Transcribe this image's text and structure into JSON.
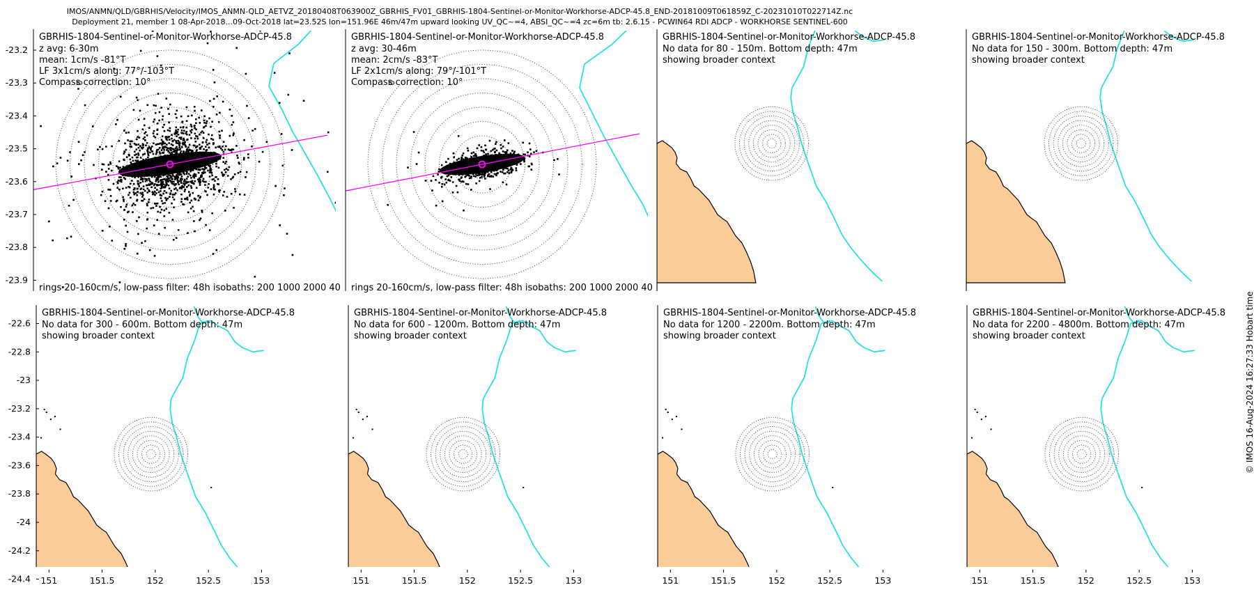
{
  "header": {
    "line1": "IMOS/ANMN/QLD/GBRHIS/Velocity/IMOS_ANMN-QLD_AETVZ_20180408T063900Z_GBRHIS_FV01_GBRHIS-1804-Sentinel-or-Monitor-Workhorse-ADCP-45.8_END-20181009T061859Z_C-20231010T022714Z.nc",
    "line2": "Deployment 21, member 1 08-Apr-2018...09-Oct-2018 lat=23.52S lon=151.96E 46m/47m upward looking UV_QC~=4, ABSI_QC~=4 zc=6m tb: 2.6.15 - PCWIN64 RDI ADCP - WORKHORSE SENTINEL-600"
  },
  "credit": "© IMOS 16-Aug-2024 16:27:33 Hobart time",
  "colors": {
    "land": "#fbcb98",
    "isobath": "#2adfe0",
    "lowpass": "#ff00ff",
    "dots": "#000000"
  },
  "chart_data": [
    {
      "type": "scatter",
      "panel": 1,
      "title": "GBRHIS-1804-Sentinel-or-Monitor-Workhorse-ADCP-45.8",
      "info": [
        "z avg: 6-30m",
        "mean: 1cm/s -81°T",
        "LF 3x1cm/s along: 77°/-103°T",
        "Compass correction: 10°"
      ],
      "footer": "rings 20-160cm/s, low-pass filter: 48h isobaths: 200 1000 2000 40",
      "xlim": [
        151.95,
        153.0
      ],
      "ylim": [
        -23.92,
        -23.12
      ],
      "yticks": [
        "-23.2",
        "-23.3",
        "-23.4",
        "-23.5",
        "-23.6",
        "-23.7",
        "-23.8",
        "-23.9"
      ],
      "mooring": {
        "lon": 151.96,
        "lat": -23.52
      }
    },
    {
      "type": "scatter",
      "panel": 2,
      "title": "GBRHIS-1804-Sentinel-or-Monitor-Workhorse-ADCP-45.8",
      "info": [
        "z avg: 30-46m",
        "mean: 2cm/s -83°T",
        "LF 2x1cm/s along: 79°/-101°T",
        "Compass correction: 10°"
      ],
      "footer": "rings 20-160cm/s, low-pass filter: 48h isobaths: 200 1000 2000 40",
      "mooring": {
        "lon": 151.96,
        "lat": -23.52
      }
    },
    {
      "type": "map",
      "panel": 3,
      "title": "GBRHIS-1804-Sentinel-or-Monitor-Workhorse-ADCP-45.8",
      "info": [
        "No data for 80 - 150m. Bottom depth: 47m",
        "showing broader context"
      ]
    },
    {
      "type": "map",
      "panel": 4,
      "title": "GBRHIS-1804-Sentinel-or-Monitor-Workhorse-ADCP-45.8",
      "info": [
        "No data for 150 - 300m. Bottom depth: 47m",
        "showing broader context"
      ]
    },
    {
      "type": "map",
      "panel": 5,
      "title": "GBRHIS-1804-Sentinel-or-Monitor-Workhorse-ADCP-45.8",
      "info": [
        "No data for 300 - 600m. Bottom depth: 47m",
        "showing broader context"
      ],
      "xlim": [
        150.88,
        153.03
      ],
      "ylim": [
        -24.5,
        -22.48
      ],
      "xticks": [
        "151",
        "151.5",
        "152",
        "152.5",
        "153"
      ],
      "yticks": [
        "-22.6",
        "-22.8",
        "-23",
        "-23.2",
        "-23.4",
        "-23.6",
        "-23.8",
        "-24",
        "-24.2",
        "-24.4"
      ]
    },
    {
      "type": "map",
      "panel": 6,
      "title": "GBRHIS-1804-Sentinel-or-Monitor-Workhorse-ADCP-45.8",
      "info": [
        "No data for 600 - 1200m. Bottom depth: 47m",
        "showing broader context"
      ],
      "xticks": [
        "151",
        "151.5",
        "152",
        "152.5",
        "153"
      ]
    },
    {
      "type": "map",
      "panel": 7,
      "title": "GBRHIS-1804-Sentinel-or-Monitor-Workhorse-ADCP-45.8",
      "info": [
        "No data for 1200 - 2200m. Bottom depth: 47m",
        "showing broader context"
      ],
      "xticks": [
        "151",
        "151.5",
        "152",
        "152.5",
        "153"
      ]
    },
    {
      "type": "map",
      "panel": 8,
      "title": "GBRHIS-1804-Sentinel-or-Monitor-Workhorse-ADCP-45.8",
      "info": [
        "No data for 2200 - 4800m. Bottom depth: 47m",
        "showing broader context"
      ],
      "xticks": [
        "151",
        "151.5",
        "152",
        "152.5",
        "153"
      ]
    }
  ]
}
